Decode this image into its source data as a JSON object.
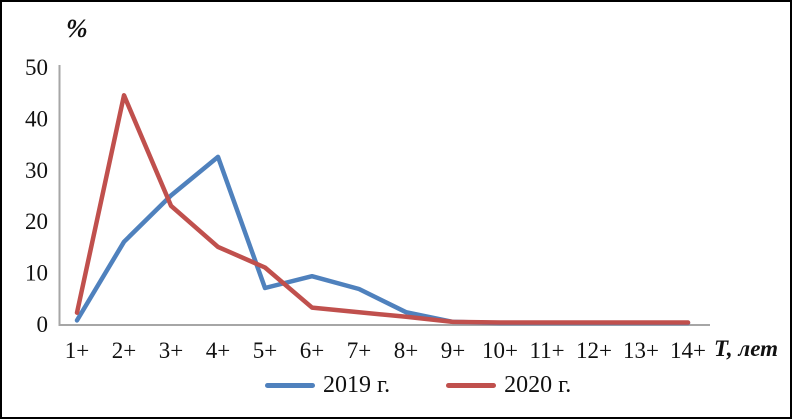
{
  "chart_data": {
    "type": "line",
    "title": "",
    "ylabel": "%",
    "xlabel": "Т, лет",
    "ylim": [
      0,
      50
    ],
    "yticks": [
      0,
      10,
      20,
      30,
      40,
      50
    ],
    "categories": [
      "1+",
      "2+",
      "3+",
      "4+",
      "5+",
      "6+",
      "7+",
      "8+",
      "9+",
      "10+",
      "11+",
      "12+",
      "13+",
      "14+"
    ],
    "series": [
      {
        "name": "2019 г.",
        "color": "#4F81BD",
        "values": [
          0.7,
          16.0,
          25.0,
          32.5,
          7.0,
          9.3,
          6.8,
          2.3,
          0.4,
          0.2,
          0.2,
          0.2,
          0.2,
          0.2
        ]
      },
      {
        "name": "2020 г.",
        "color": "#C0504D",
        "values": [
          2.2,
          44.5,
          23.0,
          15.0,
          11.0,
          3.2,
          2.3,
          1.4,
          0.4,
          0.3,
          0.3,
          0.3,
          0.3,
          0.3
        ]
      }
    ],
    "legend_position": "bottom",
    "grid": false,
    "axis_color": "#A6A6A6"
  }
}
